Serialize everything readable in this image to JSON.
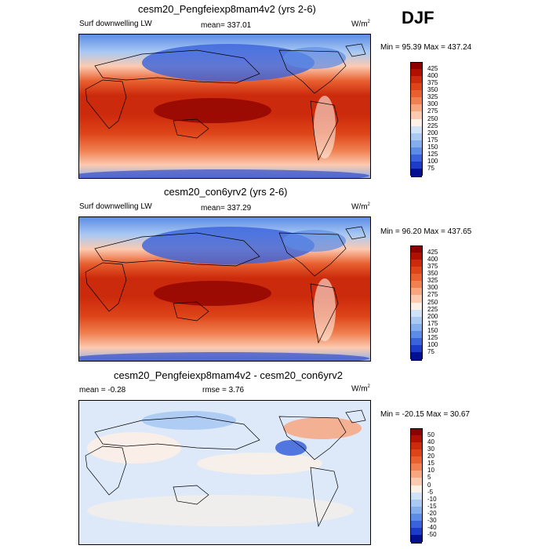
{
  "season": "DJF",
  "panels": [
    {
      "title": "cesm20_Pengfeiexp8mam4v2 (yrs 2-6)",
      "left_label": "Surf downwelling LW",
      "center_label": "mean= 337.01",
      "right_label": "W/m",
      "right_label_sup": "2",
      "minmax": "Min =  95.39 Max = 437.24"
    },
    {
      "title": "cesm20_con6yrv2 (yrs 2-6)",
      "left_label": "Surf downwelling LW",
      "center_label": "mean= 337.29",
      "right_label": "W/m",
      "right_label_sup": "2",
      "minmax": "Min =  96.20 Max = 437.65"
    },
    {
      "title": "cesm20_Pengfeiexp8mam4v2 - cesm20_con6yrv2",
      "left_label": "mean =  -0.28",
      "center_label": "rmse =   3.76",
      "right_label": "W/m",
      "right_label_sup": "2",
      "minmax": "Min = -20.15 Max =  30.67"
    }
  ],
  "colorbars": {
    "absolute": {
      "labels": [
        "425",
        "400",
        "375",
        "350",
        "325",
        "300",
        "275",
        "250",
        "225",
        "200",
        "175",
        "150",
        "125",
        "100",
        "75"
      ],
      "colors": [
        "#8b0000",
        "#b01000",
        "#cc2a0c",
        "#dd4418",
        "#e86030",
        "#f08050",
        "#f7a680",
        "#fccab0",
        "#fdf0e6",
        "#cfe2f8",
        "#a9c9f3",
        "#84adee",
        "#5c8ce6",
        "#3a62da",
        "#1c3bc8",
        "#001090"
      ]
    },
    "difference": {
      "labels": [
        "50",
        "40",
        "30",
        "20",
        "15",
        "10",
        "5",
        "0",
        "-5",
        "-10",
        "-15",
        "-20",
        "-30",
        "-40",
        "-50"
      ],
      "colors": [
        "#8b0000",
        "#b01000",
        "#cc2a0c",
        "#dd4418",
        "#e86030",
        "#f08050",
        "#f7a680",
        "#fccab0",
        "#fdf0e6",
        "#cfe2f8",
        "#a9c9f3",
        "#84adee",
        "#5c8ce6",
        "#3a62da",
        "#1c3bc8",
        "#001090"
      ]
    }
  },
  "chart_data": [
    {
      "type": "heatmap",
      "title": "cesm20_Pengfeiexp8mam4v2 (yrs 2-6)",
      "variable": "Surf downwelling LW",
      "units": "W/m2",
      "mean": 337.01,
      "min": 95.39,
      "max": 437.24,
      "levels": [
        75,
        100,
        125,
        150,
        175,
        200,
        225,
        250,
        275,
        300,
        325,
        350,
        375,
        400,
        425
      ]
    },
    {
      "type": "heatmap",
      "title": "cesm20_con6yrv2 (yrs 2-6)",
      "variable": "Surf downwelling LW",
      "units": "W/m2",
      "mean": 337.29,
      "min": 96.2,
      "max": 437.65,
      "levels": [
        75,
        100,
        125,
        150,
        175,
        200,
        225,
        250,
        275,
        300,
        325,
        350,
        375,
        400,
        425
      ]
    },
    {
      "type": "heatmap",
      "title": "cesm20_Pengfeiexp8mam4v2 - cesm20_con6yrv2",
      "units": "W/m2",
      "mean": -0.28,
      "rmse": 3.76,
      "min": -20.15,
      "max": 30.67,
      "levels": [
        -50,
        -40,
        -30,
        -20,
        -15,
        -10,
        -5,
        0,
        5,
        10,
        15,
        20,
        30,
        40,
        50
      ]
    }
  ]
}
